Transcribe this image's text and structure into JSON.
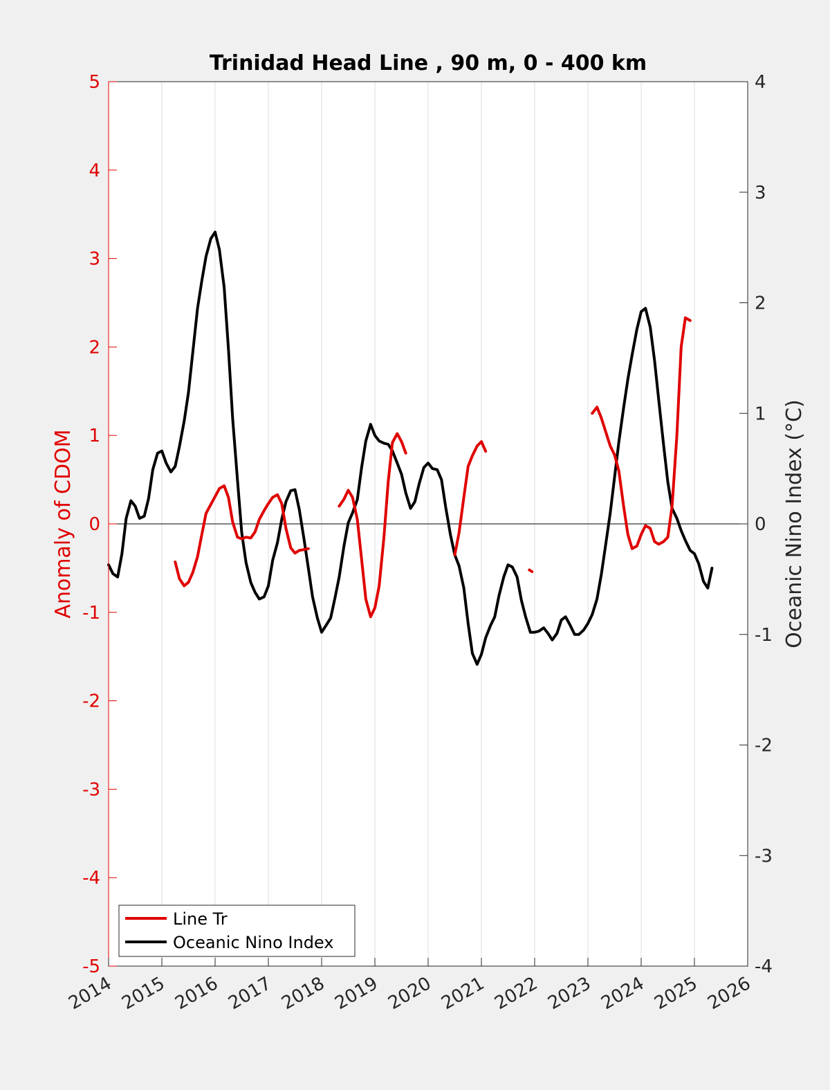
{
  "chart_data": {
    "type": "line",
    "title": "Trinidad Head Line , 90 m, 0 - 400 km",
    "ylabel_left": "Anomaly of CDOM",
    "ylabel_right": "Oceanic Nino Index (°C)",
    "xlim": [
      2014,
      2026
    ],
    "ylim_left": [
      -5,
      5
    ],
    "ylim_right": [
      -4,
      4
    ],
    "x_ticks": [
      2014,
      2015,
      2016,
      2017,
      2018,
      2019,
      2020,
      2021,
      2022,
      2023,
      2024,
      2025,
      2026
    ],
    "y_ticks_left": [
      -5,
      -4,
      -3,
      -2,
      -1,
      0,
      1,
      2,
      3,
      4,
      5
    ],
    "y_ticks_right": [
      -4,
      -3,
      -2,
      -1,
      0,
      1,
      2,
      3,
      4
    ],
    "grid": "vertical",
    "zero_line": true,
    "legend": "bottom-left",
    "colors": {
      "cdom": "#e00000",
      "oni": "#000000",
      "left_axis": "#e00000",
      "right_axis": "#262626"
    },
    "series": [
      {
        "name": "Line Tr",
        "axis": "left",
        "color": "#e00000",
        "segments": [
          [
            [
              2015.25,
              -0.43
            ],
            [
              2015.33,
              -0.62
            ],
            [
              2015.42,
              -0.7
            ],
            [
              2015.5,
              -0.66
            ],
            [
              2015.58,
              -0.55
            ],
            [
              2015.67,
              -0.37
            ],
            [
              2015.75,
              -0.12
            ],
            [
              2015.83,
              0.12
            ],
            [
              2015.92,
              0.22
            ],
            [
              2016.0,
              0.31
            ],
            [
              2016.08,
              0.4
            ],
            [
              2016.17,
              0.43
            ],
            [
              2016.25,
              0.3
            ],
            [
              2016.33,
              0.02
            ],
            [
              2016.42,
              -0.15
            ],
            [
              2016.5,
              -0.17
            ],
            [
              2016.58,
              -0.15
            ],
            [
              2016.67,
              -0.16
            ],
            [
              2016.75,
              -0.09
            ],
            [
              2016.83,
              0.05
            ],
            [
              2016.92,
              0.15
            ],
            [
              2017.0,
              0.23
            ],
            [
              2017.08,
              0.3
            ],
            [
              2017.17,
              0.33
            ],
            [
              2017.25,
              0.23
            ],
            [
              2017.33,
              -0.05
            ],
            [
              2017.42,
              -0.27
            ],
            [
              2017.5,
              -0.33
            ],
            [
              2017.58,
              -0.3
            ],
            [
              2017.67,
              -0.29
            ],
            [
              2017.75,
              -0.28
            ]
          ],
          [
            [
              2018.33,
              0.2
            ],
            [
              2018.42,
              0.28
            ],
            [
              2018.5,
              0.38
            ],
            [
              2018.58,
              0.3
            ],
            [
              2018.67,
              0.05
            ],
            [
              2018.75,
              -0.4
            ],
            [
              2018.83,
              -0.85
            ],
            [
              2018.92,
              -1.05
            ],
            [
              2019.0,
              -0.95
            ],
            [
              2019.08,
              -0.7
            ],
            [
              2019.17,
              -0.15
            ],
            [
              2019.25,
              0.48
            ],
            [
              2019.33,
              0.92
            ],
            [
              2019.42,
              1.02
            ],
            [
              2019.5,
              0.93
            ],
            [
              2019.58,
              0.8
            ]
          ],
          [
            [
              2020.5,
              -0.35
            ],
            [
              2020.58,
              -0.1
            ],
            [
              2020.67,
              0.3
            ],
            [
              2020.75,
              0.65
            ],
            [
              2020.83,
              0.77
            ],
            [
              2020.92,
              0.88
            ],
            [
              2021.0,
              0.93
            ],
            [
              2021.08,
              0.82
            ]
          ],
          [
            [
              2021.9,
              -0.52
            ],
            [
              2021.95,
              -0.54
            ]
          ],
          [
            [
              2023.08,
              1.25
            ],
            [
              2023.17,
              1.32
            ],
            [
              2023.25,
              1.2
            ],
            [
              2023.33,
              1.05
            ],
            [
              2023.42,
              0.88
            ],
            [
              2023.5,
              0.78
            ],
            [
              2023.58,
              0.6
            ],
            [
              2023.67,
              0.2
            ],
            [
              2023.75,
              -0.12
            ],
            [
              2023.83,
              -0.28
            ],
            [
              2023.92,
              -0.25
            ],
            [
              2024.0,
              -0.12
            ],
            [
              2024.08,
              -0.02
            ],
            [
              2024.17,
              -0.05
            ],
            [
              2024.25,
              -0.2
            ],
            [
              2024.33,
              -0.23
            ],
            [
              2024.42,
              -0.2
            ],
            [
              2024.5,
              -0.15
            ],
            [
              2024.58,
              0.2
            ],
            [
              2024.67,
              1.0
            ],
            [
              2024.75,
              2.0
            ],
            [
              2024.83,
              2.33
            ],
            [
              2024.92,
              2.3
            ]
          ]
        ]
      },
      {
        "name": "Oceanic Nino Index",
        "axis": "right",
        "color": "#000000",
        "segments": [
          [
            [
              2014.0,
              -0.37
            ],
            [
              2014.08,
              -0.45
            ],
            [
              2014.17,
              -0.48
            ],
            [
              2014.25,
              -0.27
            ],
            [
              2014.33,
              0.05
            ],
            [
              2014.42,
              0.21
            ],
            [
              2014.5,
              0.16
            ],
            [
              2014.58,
              0.05
            ],
            [
              2014.67,
              0.07
            ],
            [
              2014.75,
              0.23
            ],
            [
              2014.83,
              0.49
            ],
            [
              2014.92,
              0.64
            ],
            [
              2015.0,
              0.66
            ],
            [
              2015.08,
              0.55
            ],
            [
              2015.17,
              0.47
            ],
            [
              2015.25,
              0.52
            ],
            [
              2015.33,
              0.7
            ],
            [
              2015.42,
              0.93
            ],
            [
              2015.5,
              1.19
            ],
            [
              2015.58,
              1.55
            ],
            [
              2015.67,
              1.95
            ],
            [
              2015.75,
              2.2
            ],
            [
              2015.83,
              2.42
            ],
            [
              2015.92,
              2.58
            ],
            [
              2016.0,
              2.64
            ],
            [
              2016.08,
              2.48
            ],
            [
              2016.17,
              2.14
            ],
            [
              2016.25,
              1.58
            ],
            [
              2016.33,
              0.95
            ],
            [
              2016.42,
              0.4
            ],
            [
              2016.5,
              -0.08
            ],
            [
              2016.58,
              -0.35
            ],
            [
              2016.67,
              -0.53
            ],
            [
              2016.75,
              -0.62
            ],
            [
              2016.83,
              -0.68
            ],
            [
              2016.92,
              -0.66
            ],
            [
              2017.0,
              -0.56
            ],
            [
              2017.08,
              -0.33
            ],
            [
              2017.17,
              -0.17
            ],
            [
              2017.25,
              0.04
            ],
            [
              2017.33,
              0.2
            ],
            [
              2017.42,
              0.3
            ],
            [
              2017.5,
              0.31
            ],
            [
              2017.58,
              0.13
            ],
            [
              2017.67,
              -0.14
            ],
            [
              2017.75,
              -0.4
            ],
            [
              2017.83,
              -0.66
            ],
            [
              2017.92,
              -0.85
            ],
            [
              2018.0,
              -0.98
            ],
            [
              2018.08,
              -0.92
            ],
            [
              2018.17,
              -0.85
            ],
            [
              2018.25,
              -0.67
            ],
            [
              2018.33,
              -0.48
            ],
            [
              2018.42,
              -0.2
            ],
            [
              2018.5,
              0.01
            ],
            [
              2018.58,
              0.1
            ],
            [
              2018.67,
              0.22
            ],
            [
              2018.75,
              0.51
            ],
            [
              2018.83,
              0.75
            ],
            [
              2018.92,
              0.9
            ],
            [
              2019.0,
              0.8
            ],
            [
              2019.08,
              0.75
            ],
            [
              2019.17,
              0.73
            ],
            [
              2019.25,
              0.72
            ],
            [
              2019.33,
              0.66
            ],
            [
              2019.42,
              0.55
            ],
            [
              2019.5,
              0.45
            ],
            [
              2019.58,
              0.28
            ],
            [
              2019.67,
              0.14
            ],
            [
              2019.75,
              0.2
            ],
            [
              2019.83,
              0.36
            ],
            [
              2019.92,
              0.51
            ],
            [
              2020.0,
              0.55
            ],
            [
              2020.08,
              0.5
            ],
            [
              2020.17,
              0.49
            ],
            [
              2020.25,
              0.4
            ],
            [
              2020.33,
              0.15
            ],
            [
              2020.42,
              -0.1
            ],
            [
              2020.5,
              -0.28
            ],
            [
              2020.58,
              -0.38
            ],
            [
              2020.67,
              -0.58
            ],
            [
              2020.75,
              -0.9
            ],
            [
              2020.83,
              -1.17
            ],
            [
              2020.92,
              -1.27
            ],
            [
              2021.0,
              -1.18
            ],
            [
              2021.08,
              -1.03
            ],
            [
              2021.17,
              -0.92
            ],
            [
              2021.25,
              -0.84
            ],
            [
              2021.33,
              -0.65
            ],
            [
              2021.42,
              -0.48
            ],
            [
              2021.5,
              -0.37
            ],
            [
              2021.58,
              -0.39
            ],
            [
              2021.67,
              -0.48
            ],
            [
              2021.75,
              -0.69
            ],
            [
              2021.83,
              -0.84
            ],
            [
              2021.92,
              -0.98
            ],
            [
              2022.0,
              -0.98
            ],
            [
              2022.08,
              -0.97
            ],
            [
              2022.17,
              -0.94
            ],
            [
              2022.25,
              -0.99
            ],
            [
              2022.33,
              -1.05
            ],
            [
              2022.42,
              -0.99
            ],
            [
              2022.5,
              -0.87
            ],
            [
              2022.58,
              -0.84
            ],
            [
              2022.67,
              -0.92
            ],
            [
              2022.75,
              -1.0
            ],
            [
              2022.83,
              -1.0
            ],
            [
              2022.92,
              -0.96
            ],
            [
              2023.0,
              -0.9
            ],
            [
              2023.08,
              -0.82
            ],
            [
              2023.17,
              -0.68
            ],
            [
              2023.25,
              -0.46
            ],
            [
              2023.33,
              -0.2
            ],
            [
              2023.42,
              0.1
            ],
            [
              2023.5,
              0.42
            ],
            [
              2023.58,
              0.74
            ],
            [
              2023.67,
              1.05
            ],
            [
              2023.75,
              1.31
            ],
            [
              2023.83,
              1.53
            ],
            [
              2023.92,
              1.76
            ],
            [
              2024.0,
              1.92
            ],
            [
              2024.08,
              1.95
            ],
            [
              2024.17,
              1.78
            ],
            [
              2024.25,
              1.48
            ],
            [
              2024.33,
              1.12
            ],
            [
              2024.42,
              0.72
            ],
            [
              2024.5,
              0.38
            ],
            [
              2024.58,
              0.14
            ],
            [
              2024.67,
              0.05
            ],
            [
              2024.75,
              -0.06
            ],
            [
              2024.83,
              -0.15
            ],
            [
              2024.92,
              -0.24
            ],
            [
              2025.0,
              -0.27
            ],
            [
              2025.08,
              -0.36
            ],
            [
              2025.17,
              -0.52
            ],
            [
              2025.25,
              -0.58
            ],
            [
              2025.33,
              -0.4
            ]
          ]
        ]
      }
    ]
  }
}
